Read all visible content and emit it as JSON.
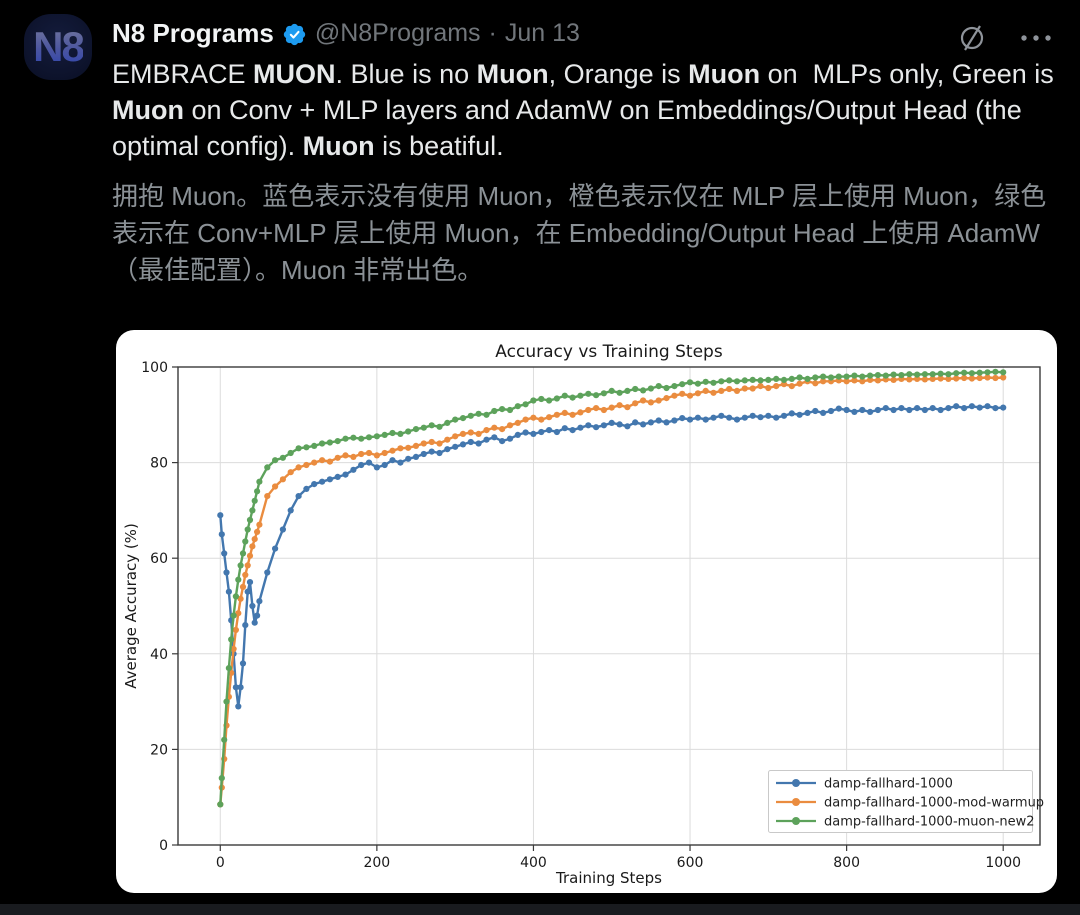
{
  "post": {
    "author": "N8 Programs",
    "handle": "@N8Programs",
    "separator": "·",
    "date": "Jun 13",
    "avatar_text": "N8",
    "body_segments": [
      {
        "text": "EMBRACE ",
        "bold": false
      },
      {
        "text": "MUON",
        "bold": true
      },
      {
        "text": ". Blue is no ",
        "bold": false
      },
      {
        "text": "Muon",
        "bold": true
      },
      {
        "text": ", Orange is ",
        "bold": false
      },
      {
        "text": "Muon",
        "bold": true
      },
      {
        "text": " on  MLPs only, Green is ",
        "bold": false
      },
      {
        "text": "Muon",
        "bold": true
      },
      {
        "text": " on Conv + MLP layers and AdamW on Embeddings/Output Head (the optimal config). ",
        "bold": false
      },
      {
        "text": "Muon",
        "bold": true
      },
      {
        "text": " is beatiful.",
        "bold": false
      }
    ],
    "translation": "拥抱 Muon。蓝色表示没有使用 Muon，橙色表示仅在 MLP 层上使用 Muon，绿色表示在 Conv+MLP 层上使用 Muon，在 Embedding/Output Head 上使用 AdamW（最佳配置）。Muon 非常出色。",
    "icons": {
      "verified": "verified-badge",
      "grok": "grok-slash-circle-icon",
      "more": "more-ellipsis-icon"
    },
    "colors": {
      "accent_blue": "#1d9bf0",
      "text_primary": "#e7e9ea",
      "text_secondary": "#71767b",
      "translation_gray": "#8b9196",
      "background": "#000000",
      "card_background": "#ffffff"
    }
  },
  "chart_data": {
    "type": "line",
    "title": "Accuracy vs Training Steps",
    "xlabel": "Training Steps",
    "ylabel": "Average Accuracy (%)",
    "xlim": [
      -54,
      1047
    ],
    "ylim": [
      0,
      100
    ],
    "xticks": [
      0,
      200,
      400,
      600,
      800,
      1000
    ],
    "yticks": [
      0,
      20,
      40,
      60,
      80,
      100
    ],
    "grid": true,
    "legend_position": "lower right",
    "marker": "o",
    "x": [
      0,
      2,
      5,
      8,
      11,
      14,
      17,
      20,
      23,
      26,
      29,
      32,
      35,
      38,
      41,
      44,
      47,
      50,
      60,
      70,
      80,
      90,
      100,
      110,
      120,
      130,
      140,
      150,
      160,
      170,
      180,
      190,
      200,
      210,
      220,
      230,
      240,
      250,
      260,
      270,
      280,
      290,
      300,
      310,
      320,
      330,
      340,
      350,
      360,
      370,
      380,
      390,
      400,
      410,
      420,
      430,
      440,
      450,
      460,
      470,
      480,
      490,
      500,
      510,
      520,
      530,
      540,
      550,
      560,
      570,
      580,
      590,
      600,
      610,
      620,
      630,
      640,
      650,
      660,
      670,
      680,
      690,
      700,
      710,
      720,
      730,
      740,
      750,
      760,
      770,
      780,
      790,
      800,
      810,
      820,
      830,
      840,
      850,
      860,
      870,
      880,
      890,
      900,
      910,
      920,
      930,
      940,
      950,
      960,
      970,
      980,
      990,
      1000
    ],
    "series": [
      {
        "name": "damp-fallhard-1000",
        "color": "#4377ae",
        "y": [
          69,
          65,
          61,
          57,
          53,
          47,
          40,
          33,
          29,
          33,
          38,
          46,
          53,
          55,
          50,
          46.5,
          48,
          51,
          57,
          62,
          66,
          70,
          73,
          74.5,
          75.5,
          76,
          76.5,
          77,
          77.5,
          78.5,
          79.5,
          80,
          79,
          79.5,
          80.5,
          80,
          80.8,
          81.2,
          81.8,
          82.3,
          82,
          82.8,
          83.3,
          83.8,
          84.3,
          84,
          84.8,
          85.3,
          84.5,
          85,
          85.8,
          86.3,
          86,
          86.4,
          86.8,
          86.4,
          87.2,
          86.8,
          87.3,
          87.8,
          87.4,
          87.8,
          88.3,
          88,
          87.6,
          88.4,
          88,
          88.4,
          88.8,
          88.4,
          88.8,
          89.3,
          89,
          89.4,
          89,
          89.4,
          89.8,
          89.4,
          89,
          89.4,
          89.8,
          89.5,
          89.8,
          89.4,
          89.8,
          90.3,
          90,
          90.4,
          90.8,
          90.4,
          90.8,
          91.3,
          91,
          90.6,
          91,
          90.6,
          91,
          91.4,
          91,
          91.4,
          91,
          91.4,
          91,
          91.4,
          91,
          91.4,
          91.8,
          91.4,
          91.8,
          91.5,
          91.8,
          91.4,
          91.5
        ]
      },
      {
        "name": "damp-fallhard-1000-mod-warmup",
        "color": "#ea8c3f",
        "y": [
          8.5,
          12,
          18,
          25,
          31,
          36,
          41,
          45,
          48.5,
          51.5,
          54,
          56.5,
          58.5,
          60.5,
          62.5,
          64,
          65.5,
          67,
          73,
          75,
          76.5,
          78,
          79,
          79.5,
          80,
          80.5,
          80.2,
          81,
          81.5,
          81.2,
          81.8,
          82,
          81.5,
          82,
          82.5,
          83,
          83.1,
          83.5,
          84,
          84.3,
          84,
          84.8,
          85.5,
          86,
          86.3,
          86,
          86.8,
          87.3,
          87,
          87.8,
          88.3,
          89,
          89.4,
          89,
          89.5,
          90,
          90.4,
          90,
          90.5,
          91,
          91.4,
          91,
          91.5,
          92,
          91.6,
          92.4,
          93,
          92.6,
          93,
          93.5,
          94,
          94.4,
          94,
          94.5,
          95,
          94.6,
          95,
          95.4,
          95,
          95.5,
          95.5,
          96,
          95.6,
          96,
          96.4,
          96,
          96.5,
          97,
          96.6,
          97,
          97,
          97.2,
          97,
          97.2,
          97,
          97.3,
          97.2,
          97.4,
          97.3,
          97.5,
          97.4,
          97.5,
          97.4,
          97.5,
          97.6,
          97.5,
          97.6,
          97.7,
          97.6,
          97.7,
          97.8,
          97.7,
          97.8
        ]
      },
      {
        "name": "damp-fallhard-1000-muon-new2",
        "color": "#5da25b",
        "y": [
          8.5,
          14,
          22,
          30,
          37,
          43,
          48,
          52,
          55.5,
          58.5,
          61,
          63.5,
          66,
          68,
          70,
          72,
          74,
          76,
          79,
          80.5,
          81,
          82,
          83,
          83.2,
          83.5,
          84,
          84.2,
          84.5,
          85,
          85.2,
          85,
          85.3,
          85.5,
          85.8,
          86.2,
          86,
          86.5,
          87,
          87.3,
          87.8,
          87.5,
          88.3,
          89,
          89.3,
          89.8,
          90.2,
          90,
          90.8,
          91.2,
          91,
          91.8,
          92.2,
          93,
          93.3,
          93,
          93.4,
          94,
          93.6,
          94,
          94.4,
          94.1,
          94.5,
          95,
          94.6,
          95,
          95.4,
          95.1,
          95.5,
          96,
          95.6,
          96,
          96.4,
          96.8,
          96.5,
          96.9,
          96.7,
          97,
          97.2,
          97,
          97.2,
          97.3,
          97.2,
          97.3,
          97.5,
          97.3,
          97.5,
          97.8,
          97.5,
          97.8,
          98,
          97.8,
          98,
          98,
          98.2,
          98,
          98.2,
          98.3,
          98.2,
          98.4,
          98.3,
          98.5,
          98.4,
          98.5,
          98.5,
          98.6,
          98.5,
          98.7,
          98.8,
          98.7,
          98.8,
          98.9,
          99,
          98.9
        ]
      }
    ]
  }
}
